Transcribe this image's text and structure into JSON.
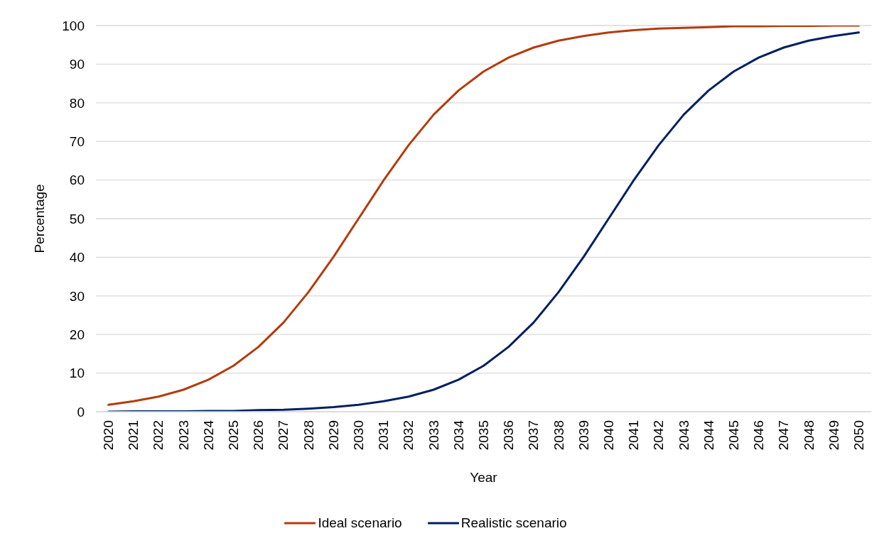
{
  "chart_data": {
    "type": "line",
    "xlabel": "Year",
    "ylabel": "Percentage",
    "categories": [
      "2020",
      "2021",
      "2022",
      "2023",
      "2024",
      "2025",
      "2026",
      "2027",
      "2028",
      "2029",
      "2030",
      "2031",
      "2032",
      "2033",
      "2034",
      "2035",
      "2036",
      "2037",
      "2038",
      "2039",
      "2040",
      "2041",
      "2042",
      "2043",
      "2044",
      "2045",
      "2046",
      "2047",
      "2048",
      "2049",
      "2050"
    ],
    "series": [
      {
        "name": "Ideal scenario",
        "color": "#b33c0b",
        "values": [
          1.8,
          2.7,
          3.9,
          5.7,
          8.3,
          11.9,
          16.8,
          23.1,
          31.0,
          40.1,
          50.0,
          59.9,
          69.0,
          76.9,
          83.2,
          88.1,
          91.7,
          94.3,
          96.1,
          97.3,
          98.2,
          98.8,
          99.2,
          99.4,
          99.6,
          99.8,
          99.8,
          99.9,
          99.9,
          100,
          100
        ]
      },
      {
        "name": "Realistic scenario",
        "color": "#002060",
        "values": [
          0,
          0.1,
          0.1,
          0.1,
          0.2,
          0.2,
          0.4,
          0.5,
          0.8,
          1.2,
          1.8,
          2.7,
          3.9,
          5.7,
          8.3,
          11.9,
          16.8,
          23.1,
          31.0,
          40.1,
          50.0,
          59.9,
          69.0,
          76.9,
          83.2,
          88.1,
          91.7,
          94.3,
          96.1,
          97.3,
          98.2
        ]
      }
    ],
    "ylim": [
      0,
      100
    ],
    "yticks": [
      0,
      10,
      20,
      30,
      40,
      50,
      60,
      70,
      80,
      90,
      100
    ],
    "grid": "y",
    "legend": "bottom"
  }
}
